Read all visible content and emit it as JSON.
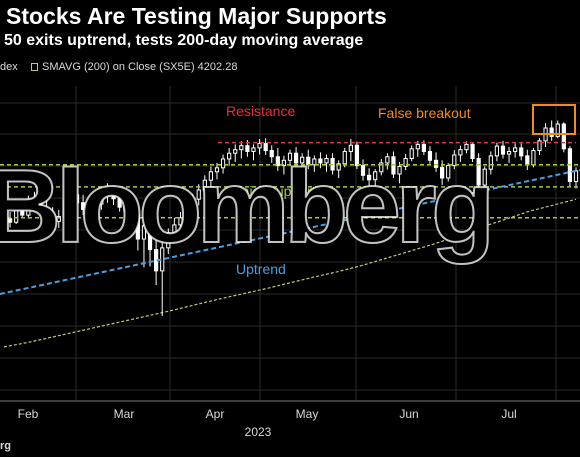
{
  "header": {
    "title": "Stocks Are Testing Major Supports",
    "subtitle": "50 exits uptrend, tests 200-day moving average"
  },
  "legend": {
    "series_label": "dex",
    "sma_label": "SMAVG (200)  on Close (SX5E) 4202.28",
    "sma_color": "#c8c37a"
  },
  "source": "rg",
  "watermark": "Bloomberg",
  "chart_data": {
    "type": "candlestick",
    "year_label": "2023",
    "month_labels": [
      "Feb",
      "Mar",
      "Apr",
      "May",
      "Jun",
      "Jul"
    ],
    "grid": true,
    "colors": {
      "candle": "#ffffff",
      "resistance": "#e5323c",
      "support": "#9ccc3a",
      "uptrend": "#4a9fe0",
      "sma": "#c8c37a",
      "highlight": "#f08a24"
    },
    "annotations": {
      "resistance": "Resistance",
      "false_breakout": "False breakout",
      "major_supports": "Major supports",
      "uptrend": "Uptrend"
    },
    "candles": [
      [
        4150,
        4181,
        4140,
        4170
      ],
      [
        4170,
        4185,
        4150,
        4162
      ],
      [
        4162,
        4202,
        4158,
        4190
      ],
      [
        4190,
        4210,
        4172,
        4178
      ],
      [
        4178,
        4222,
        4170,
        4205
      ],
      [
        4205,
        4231,
        4190,
        4214
      ],
      [
        4214,
        4226,
        4185,
        4195
      ],
      [
        4195,
        4212,
        4172,
        4180
      ],
      [
        4180,
        4196,
        4150,
        4164
      ],
      [
        4164,
        4190,
        4149,
        4175
      ],
      [
        4175,
        4228,
        4168,
        4212
      ],
      [
        4212,
        4242,
        4200,
        4224
      ],
      [
        4224,
        4245,
        4196,
        4206
      ],
      [
        4206,
        4224,
        4178,
        4191
      ],
      [
        4191,
        4210,
        4166,
        4182
      ],
      [
        4182,
        4218,
        4174,
        4203
      ],
      [
        4203,
        4236,
        4190,
        4226
      ],
      [
        4226,
        4250,
        4206,
        4232
      ],
      [
        4232,
        4245,
        4201,
        4215
      ],
      [
        4215,
        4226,
        4186,
        4196
      ],
      [
        4196,
        4208,
        4172,
        4186
      ],
      [
        4186,
        4198,
        4170,
        4180
      ],
      [
        4180,
        4190,
        4098,
        4124
      ],
      [
        4124,
        4182,
        4060,
        4154
      ],
      [
        4154,
        4172,
        4062,
        4100
      ],
      [
        4100,
        4132,
        4020,
        4052
      ],
      [
        4052,
        4124,
        3950,
        4104
      ],
      [
        4104,
        4148,
        4090,
        4138
      ],
      [
        4138,
        4172,
        4121,
        4156
      ],
      [
        4156,
        4185,
        4138,
        4172
      ],
      [
        4172,
        4202,
        4159,
        4189
      ],
      [
        4189,
        4226,
        4176,
        4214
      ],
      [
        4214,
        4248,
        4200,
        4235
      ],
      [
        4235,
        4268,
        4221,
        4257
      ],
      [
        4257,
        4288,
        4242,
        4276
      ],
      [
        4276,
        4296,
        4259,
        4285
      ],
      [
        4285,
        4315,
        4272,
        4305
      ],
      [
        4305,
        4330,
        4290,
        4318
      ],
      [
        4318,
        4338,
        4298,
        4326
      ],
      [
        4326,
        4345,
        4306,
        4335
      ],
      [
        4335,
        4348,
        4310,
        4322
      ],
      [
        4322,
        4338,
        4302,
        4330
      ],
      [
        4330,
        4350,
        4315,
        4340
      ],
      [
        4340,
        4352,
        4314,
        4324
      ],
      [
        4324,
        4336,
        4296,
        4310
      ],
      [
        4310,
        4330,
        4278,
        4290
      ],
      [
        4290,
        4312,
        4270,
        4302
      ],
      [
        4302,
        4326,
        4289,
        4318
      ],
      [
        4318,
        4332,
        4290,
        4296
      ],
      [
        4296,
        4318,
        4280,
        4309
      ],
      [
        4309,
        4326,
        4282,
        4292
      ],
      [
        4292,
        4313,
        4276,
        4305
      ],
      [
        4305,
        4320,
        4284,
        4296
      ],
      [
        4296,
        4315,
        4276,
        4306
      ],
      [
        4306,
        4318,
        4270,
        4280
      ],
      [
        4280,
        4302,
        4262,
        4294
      ],
      [
        4294,
        4330,
        4286,
        4322
      ],
      [
        4322,
        4350,
        4300,
        4336
      ],
      [
        4336,
        4344,
        4282,
        4290
      ],
      [
        4290,
        4304,
        4256,
        4268
      ],
      [
        4268,
        4284,
        4240,
        4258
      ],
      [
        4258,
        4282,
        4244,
        4276
      ],
      [
        4276,
        4305,
        4268,
        4296
      ],
      [
        4296,
        4318,
        4281,
        4310
      ],
      [
        4310,
        4322,
        4262,
        4271
      ],
      [
        4271,
        4298,
        4250,
        4288
      ],
      [
        4288,
        4316,
        4280,
        4306
      ],
      [
        4306,
        4336,
        4300,
        4328
      ],
      [
        4328,
        4346,
        4310,
        4338
      ],
      [
        4338,
        4347,
        4314,
        4322
      ],
      [
        4322,
        4334,
        4294,
        4302
      ],
      [
        4302,
        4320,
        4276,
        4286
      ],
      [
        4286,
        4302,
        4246,
        4262
      ],
      [
        4262,
        4296,
        4254,
        4290
      ],
      [
        4290,
        4325,
        4282,
        4314
      ],
      [
        4314,
        4335,
        4298,
        4326
      ],
      [
        4326,
        4345,
        4318,
        4338
      ],
      [
        4338,
        4342,
        4298,
        4306
      ],
      [
        4306,
        4318,
        4236,
        4246
      ],
      [
        4246,
        4288,
        4226,
        4282
      ],
      [
        4282,
        4322,
        4270,
        4312
      ],
      [
        4312,
        4342,
        4300,
        4334
      ],
      [
        4334,
        4346,
        4306,
        4316
      ],
      [
        4316,
        4332,
        4296,
        4322
      ],
      [
        4322,
        4340,
        4308,
        4330
      ],
      [
        4330,
        4340,
        4302,
        4312
      ],
      [
        4312,
        4326,
        4280,
        4292
      ],
      [
        4292,
        4330,
        4286,
        4324
      ],
      [
        4324,
        4352,
        4314,
        4346
      ],
      [
        4346,
        4386,
        4332,
        4375
      ],
      [
        4375,
        4392,
        4346,
        4356
      ],
      [
        4356,
        4392,
        4352,
        4384
      ],
      [
        4384,
        4388,
        4320,
        4328
      ],
      [
        4328,
        4334,
        4242,
        4254
      ],
      [
        4254,
        4286,
        4238,
        4278
      ]
    ],
    "sma": [
      3880,
      3890,
      3902,
      3914,
      3926,
      3938,
      3950,
      3962,
      3975,
      3988,
      4000,
      4012,
      4025,
      4038,
      4050,
      4064,
      4080,
      4096,
      4112,
      4130,
      4150,
      4168,
      4186,
      4200,
      4214
    ],
    "resistance_level": 4342,
    "support_levels": [
      4292,
      4242,
      4172
    ]
  }
}
